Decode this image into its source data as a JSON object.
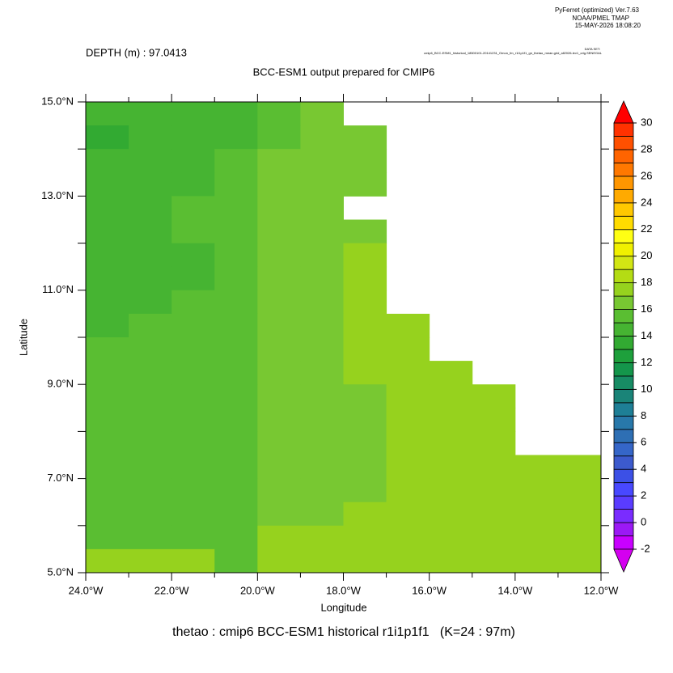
{
  "chart_data": {
    "type": "heatmap",
    "header": [
      "PyFerret (optimized) Ver.7.63",
      "NOAA/PMEL TMAP",
      "15-MAY-2026 18:08:20"
    ],
    "depth_label": "DEPTH (m) : 97.0413",
    "dataset_label": "DATA SET:",
    "dataset": "cmip6_BCC-ESM1_historical_18500101-20141231_Omon_fm_r1i1p1f1_gn_thetao_mean.grid_all2026-lev1_orig.SENEGAL",
    "title": "BCC-ESM1 output prepared for CMIP6",
    "xlabel": "Longitude",
    "ylabel": "Latitude",
    "footer": "thetao : cmip6 BCC-ESM1 historical r1i1p1f1   (K=24 : 97m)",
    "xlim": [
      -24,
      -12
    ],
    "ylim": [
      5,
      15
    ],
    "xticks": [
      {
        "value": -24,
        "label": "24.0°W"
      },
      {
        "value": -22,
        "label": "22.0°W"
      },
      {
        "value": -20,
        "label": "20.0°W"
      },
      {
        "value": -18,
        "label": "18.0°W"
      },
      {
        "value": -16,
        "label": "16.0°W"
      },
      {
        "value": -14,
        "label": "14.0°W"
      },
      {
        "value": -12,
        "label": "12.0°W"
      }
    ],
    "yticks": [
      {
        "value": 5,
        "label": "5.0°N"
      },
      {
        "value": 7,
        "label": "7.0°N"
      },
      {
        "value": 9,
        "label": "9.0°N"
      },
      {
        "value": 11,
        "label": "11.0°N"
      },
      {
        "value": 13,
        "label": "13.0°N"
      },
      {
        "value": 15,
        "label": "15.0°N"
      }
    ],
    "xminorticks": [
      -23,
      -21,
      -19,
      -17,
      -15,
      -13
    ],
    "yminorticks": [
      6,
      8,
      10,
      12,
      14
    ],
    "x_edges": [
      -24,
      -23,
      -22,
      -21,
      -20,
      -19,
      -18,
      -17,
      -16,
      -15,
      -14,
      -13,
      -12
    ],
    "y_edges": [
      15,
      14.5,
      14,
      13.5,
      13,
      12.5,
      12,
      11.5,
      11,
      10.5,
      10,
      9.5,
      9,
      8.5,
      8,
      7.5,
      7,
      6.5,
      6,
      5.5,
      5
    ],
    "values": [
      [
        14.5,
        14.5,
        14.5,
        14.5,
        15.5,
        16.5,
        null,
        null,
        null,
        null,
        null,
        null
      ],
      [
        13.5,
        14.5,
        14.5,
        14.5,
        15.5,
        16.5,
        16.5,
        null,
        null,
        null,
        null,
        null
      ],
      [
        14.5,
        14.5,
        14.5,
        15.5,
        16.5,
        16.5,
        16.5,
        null,
        null,
        null,
        null,
        null
      ],
      [
        14.5,
        14.5,
        14.5,
        15.5,
        16.5,
        16.5,
        16.5,
        null,
        null,
        null,
        null,
        null
      ],
      [
        14.5,
        14.5,
        15.5,
        15.5,
        16.5,
        16.5,
        null,
        null,
        null,
        null,
        null,
        null
      ],
      [
        14.5,
        14.5,
        15.5,
        15.5,
        16.5,
        16.5,
        16.5,
        null,
        null,
        null,
        null,
        null
      ],
      [
        14.5,
        14.5,
        14.5,
        15.5,
        16.5,
        16.5,
        17.5,
        null,
        null,
        null,
        null,
        null
      ],
      [
        14.5,
        14.5,
        14.5,
        15.5,
        16.5,
        16.5,
        17.5,
        null,
        null,
        null,
        null,
        null
      ],
      [
        14.5,
        14.5,
        15.5,
        15.5,
        16.5,
        16.5,
        17.5,
        null,
        null,
        null,
        null,
        null
      ],
      [
        14.5,
        15.5,
        15.5,
        15.5,
        16.5,
        16.5,
        17.5,
        17.5,
        null,
        null,
        null,
        null
      ],
      [
        15.5,
        15.5,
        15.5,
        15.5,
        16.5,
        16.5,
        17.5,
        17.5,
        null,
        null,
        null,
        null
      ],
      [
        15.5,
        15.5,
        15.5,
        15.5,
        16.5,
        16.5,
        17.5,
        17.5,
        17.5,
        null,
        null,
        null
      ],
      [
        15.5,
        15.5,
        15.5,
        15.5,
        16.5,
        16.5,
        16.5,
        17.5,
        17.5,
        17.5,
        null,
        null
      ],
      [
        15.5,
        15.5,
        15.5,
        15.5,
        16.5,
        16.5,
        16.5,
        17.5,
        17.5,
        17.5,
        null,
        null
      ],
      [
        15.5,
        15.5,
        15.5,
        15.5,
        16.5,
        16.5,
        16.5,
        17.5,
        17.5,
        17.5,
        null,
        null
      ],
      [
        15.5,
        15.5,
        15.5,
        15.5,
        16.5,
        16.5,
        16.5,
        17.5,
        17.5,
        17.5,
        17.5,
        17.5
      ],
      [
        15.5,
        15.5,
        15.5,
        15.5,
        16.5,
        16.5,
        16.5,
        17.5,
        17.5,
        17.5,
        17.5,
        17.5
      ],
      [
        15.5,
        15.5,
        15.5,
        15.5,
        16.5,
        16.5,
        17.5,
        17.5,
        17.5,
        17.5,
        17.5,
        17.5
      ],
      [
        15.5,
        15.5,
        15.5,
        15.5,
        17.5,
        17.5,
        17.5,
        17.5,
        17.5,
        17.5,
        17.5,
        17.5
      ],
      [
        17.5,
        17.5,
        17.5,
        15.5,
        17.5,
        17.5,
        17.5,
        17.5,
        17.5,
        17.5,
        17.5,
        17.5
      ]
    ],
    "colorbar": {
      "clim": [
        -2,
        30
      ],
      "ticks": [
        -2,
        0,
        2,
        4,
        6,
        8,
        10,
        12,
        14,
        16,
        18,
        20,
        22,
        24,
        26,
        28,
        30
      ],
      "under_color": "#d400f0",
      "over_color": "#ff0000",
      "colors": [
        "#c800ff",
        "#9b19f5",
        "#7a2cff",
        "#5a3cff",
        "#4848ff",
        "#3c50e6",
        "#3c5acd",
        "#3566c8",
        "#2e6fb4",
        "#2878aa",
        "#1e7f96",
        "#1a8478",
        "#178c64",
        "#14964b",
        "#1ea03c",
        "#32aa32",
        "#46b432",
        "#5abe32",
        "#78c832",
        "#96d21e",
        "#b4dc14",
        "#d2e614",
        "#f0f000",
        "#ffff14",
        "#ffdc00",
        "#ffc800",
        "#ffaa00",
        "#ff9600",
        "#ff7800",
        "#ff6400",
        "#ff5000",
        "#ff3200"
      ]
    }
  }
}
